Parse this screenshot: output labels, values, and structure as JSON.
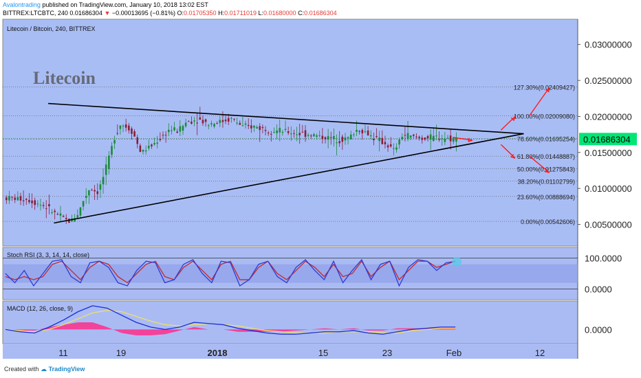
{
  "header": {
    "author": "Avalontrading",
    "published_text": "published on TradingView.com, January 10, 2018 13:02 EST",
    "symbol": "BITTREX:LTCBTC, 240",
    "last": "0.01686304",
    "change_arrow": "▼",
    "change": "−0.00013695 (−0.81%)",
    "o_label": "O:",
    "o": "0.01705350",
    "h_label": "H:",
    "h": "0.01711019",
    "l_label": "L:",
    "l": "0.01680000",
    "c_label": "C:",
    "c": "0.01686304"
  },
  "footer": {
    "created_with": "Created with",
    "brand": "TradingView"
  },
  "colors": {
    "bg_main": "#a9bdf5",
    "bg_ind": "#aabbf4",
    "axis_bg": "#ffffff",
    "up": "#1b8a3a",
    "down": "#8b1d3a",
    "trend": "#000000",
    "arrow": "#ff1a1a",
    "price_tag": "#00e676",
    "rsi_k": "#2e3bd8",
    "rsi_d": "#c62828",
    "macd": "#1a2bd8",
    "signal": "#f0e060",
    "hist": "#ff2d8a"
  },
  "chart_data": [
    {
      "type": "candlestick",
      "title": "Litecoin / Bitcoin, 240, BITTREX",
      "watermark": "Litecoin",
      "x_ticks": [
        "11",
        "19",
        "2018",
        "15",
        "23",
        "Feb",
        "12"
      ],
      "y_ticks": [
        "0.03000000",
        "0.02500000",
        "0.02000000",
        "0.01500000",
        "0.01000000",
        "0.00500000"
      ],
      "ylim": [
        0.002,
        0.0335
      ],
      "last_price": 0.01686304,
      "last_price_label": "0.01686304",
      "fib_levels": [
        {
          "label": "127.30%(0.02409427)",
          "value": 0.02409427
        },
        {
          "label": "100.00%(0.02009080)",
          "value": 0.0200908
        },
        {
          "label": "78.60%(0.01695254)",
          "value": 0.01695254
        },
        {
          "label": "61.80%(0.01448887)",
          "value": 0.01448887
        },
        {
          "label": "50.00%(0.01275843)",
          "value": 0.01275843
        },
        {
          "label": "38.20%(0.01102799)",
          "value": 0.01102799
        },
        {
          "label": "23.60%(0.00888694)",
          "value": 0.00888694
        },
        {
          "label": "0.00%(0.00542606)",
          "value": 0.00542606
        }
      ],
      "price_path": [
        [
          0,
          0.0087
        ],
        [
          8,
          0.0085
        ],
        [
          14,
          0.0076
        ],
        [
          18,
          0.0065
        ],
        [
          21,
          0.0058
        ],
        [
          23,
          0.0054
        ],
        [
          26,
          0.0065
        ],
        [
          28,
          0.0085
        ],
        [
          30,
          0.01
        ],
        [
          33,
          0.0095
        ],
        [
          36,
          0.013
        ],
        [
          39,
          0.0175
        ],
        [
          41,
          0.019
        ],
        [
          45,
          0.018
        ],
        [
          48,
          0.015
        ],
        [
          52,
          0.016
        ],
        [
          55,
          0.017
        ],
        [
          58,
          0.0182
        ],
        [
          61,
          0.018
        ],
        [
          64,
          0.0192
        ],
        [
          68,
          0.0196
        ],
        [
          72,
          0.019
        ],
        [
          76,
          0.0193
        ],
        [
          80,
          0.0197
        ],
        [
          84,
          0.0185
        ],
        [
          88,
          0.0186
        ],
        [
          92,
          0.0182
        ],
        [
          96,
          0.018
        ],
        [
          100,
          0.0178
        ],
        [
          104,
          0.0176
        ],
        [
          108,
          0.0175
        ],
        [
          111,
          0.0172
        ],
        [
          114,
          0.017
        ],
        [
          118,
          0.0168
        ],
        [
          121,
          0.017
        ],
        [
          124,
          0.0182
        ],
        [
          127,
          0.0178
        ],
        [
          130,
          0.017
        ],
        [
          134,
          0.0162
        ],
        [
          137,
          0.0152
        ],
        [
          140,
          0.0175
        ],
        [
          143,
          0.0172
        ],
        [
          146,
          0.017
        ],
        [
          149,
          0.017
        ],
        [
          152,
          0.0171
        ],
        [
          155,
          0.017
        ],
        [
          158,
          0.01686
        ]
      ],
      "trendlines": [
        {
          "from": [
            15,
            0.0218
          ],
          "to": [
            182,
            0.0176
          ]
        },
        {
          "from": [
            17,
            0.0052
          ],
          "to": [
            182,
            0.0176
          ]
        }
      ],
      "arrows": [
        {
          "from": [
            174,
            0.0181
          ],
          "to": [
            179,
            0.02
          ]
        },
        {
          "from": [
            184,
            0.0201
          ],
          "to": [
            191,
            0.024
          ]
        },
        {
          "from": [
            174,
            0.0161
          ],
          "to": [
            179,
            0.0142
          ]
        },
        {
          "from": [
            184,
            0.0145
          ],
          "to": [
            191,
            0.0122
          ]
        },
        {
          "from": [
            157,
            0.0171
          ],
          "to": [
            164,
            0.0167
          ]
        }
      ]
    },
    {
      "type": "line",
      "title": "Stoch RSI (3, 3, 14, 14, close)",
      "y_ticks": [
        "100.0000",
        "0.0000"
      ],
      "ylim": [
        -35,
        135
      ],
      "band": [
        20,
        80
      ],
      "series": [
        {
          "values_k": [
            50,
            20,
            60,
            10,
            50,
            90,
            95,
            40,
            20,
            85,
            90,
            70,
            20,
            10,
            60,
            90,
            85,
            20,
            30,
            80,
            95,
            50,
            20,
            90,
            85,
            10,
            30,
            80,
            90,
            40,
            20,
            70,
            95,
            60,
            30,
            90,
            20,
            60,
            95,
            30,
            80,
            90,
            10,
            70,
            95,
            90,
            60,
            85,
            90
          ]
        },
        {
          "values_d": [
            40,
            30,
            40,
            30,
            40,
            80,
            90,
            60,
            30,
            70,
            90,
            80,
            40,
            20,
            50,
            80,
            90,
            40,
            30,
            70,
            90,
            60,
            30,
            80,
            90,
            30,
            30,
            70,
            90,
            50,
            30,
            60,
            90,
            70,
            40,
            80,
            40,
            50,
            90,
            40,
            70,
            90,
            30,
            60,
            90,
            90,
            70,
            80,
            90
          ]
        }
      ]
    },
    {
      "type": "line",
      "title": "MACD (12, 26, close, 9)",
      "y_ticks": [
        "0.0000"
      ],
      "ylim": [
        -0.0012,
        0.0024
      ],
      "series": [
        {
          "values_macd": [
            0.0,
            -0.0002,
            -0.0003,
            0.0002,
            0.0008,
            0.0015,
            0.002,
            0.0018,
            0.0012,
            0.0006,
            0.0002,
            0.0,
            0.0002,
            0.0006,
            0.0005,
            0.0004,
            0.0001,
            -0.0001,
            -0.0003,
            -0.0004,
            -0.0004,
            -0.0003,
            -0.0002,
            -0.0002,
            -0.0001,
            -0.0003,
            -0.0004,
            -0.0002,
            0.0,
            0.0001,
            0.0002,
            0.0002
          ]
        },
        {
          "values_signal": [
            0.0,
            -0.0001,
            -0.0002,
            0.0,
            0.0004,
            0.0009,
            0.0014,
            0.0016,
            0.0015,
            0.0011,
            0.0007,
            0.0004,
            0.0003,
            0.0004,
            0.0005,
            0.0004,
            0.0003,
            0.0001,
            -0.0001,
            -0.0002,
            -0.0003,
            -0.0003,
            -0.0003,
            -0.0002,
            -0.0002,
            -0.0002,
            -0.0003,
            -0.0003,
            -0.0001,
            0.0,
            0.0001,
            0.0001
          ]
        }
      ]
    }
  ]
}
